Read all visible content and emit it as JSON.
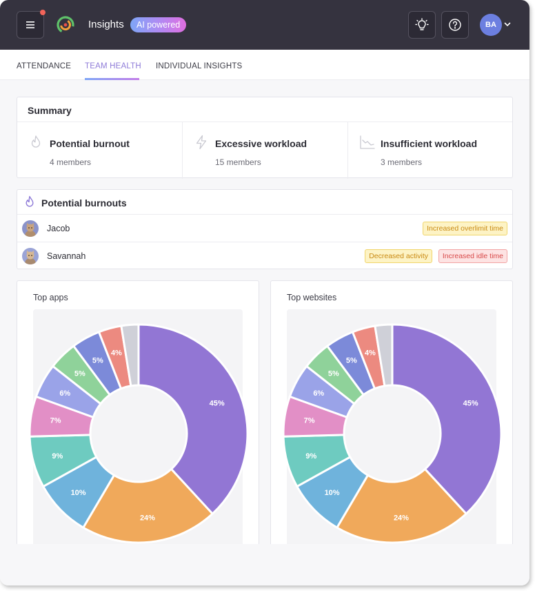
{
  "header": {
    "title": "Insights",
    "badge": "AI powered",
    "avatar_initials": "BA",
    "colors": {
      "bar": "#35333f",
      "badge_start": "#7ea6f7",
      "badge_end": "#e06ee0",
      "avatar": "#6c7fe0",
      "notification": "#f2645a"
    },
    "icons": [
      "menu-icon",
      "lightbulb-icon",
      "help-icon",
      "chevron-down-icon"
    ]
  },
  "tabs": [
    {
      "label": "ATTENDANCE",
      "active": false
    },
    {
      "label": "TEAM HEALTH",
      "active": true
    },
    {
      "label": "INDIVIDUAL INSIGHTS",
      "active": false
    }
  ],
  "summary": {
    "title": "Summary",
    "items": [
      {
        "name": "Potential burnout",
        "count": "4 members",
        "icon": "flame-icon"
      },
      {
        "name": "Excessive workload",
        "count": "15 members",
        "icon": "lightning-icon"
      },
      {
        "name": "Insufficient workload",
        "count": "3 members",
        "icon": "trend-down-icon"
      }
    ]
  },
  "burnouts": {
    "title": "Potential burnouts",
    "people": [
      {
        "name": "Jacob",
        "tags": [
          {
            "label": "Increased overlimit time",
            "kind": "warn"
          }
        ]
      },
      {
        "name": "Savannah",
        "tags": [
          {
            "label": "Decreased activity",
            "kind": "warn"
          },
          {
            "label": "Increased idle time",
            "kind": "err"
          }
        ]
      }
    ]
  },
  "chart_data": [
    {
      "type": "pie",
      "title": "Top apps",
      "values": [
        45,
        24,
        10,
        9,
        7,
        6,
        5,
        5,
        4,
        3
      ],
      "labels": [
        "45%",
        "24%",
        "10%",
        "9%",
        "7%",
        "6%",
        "5%",
        "5%",
        "4%",
        ""
      ],
      "colors": [
        "#9276d4",
        "#f0a95b",
        "#6fb3dc",
        "#6ecbc0",
        "#e28fc6",
        "#9aa3e8",
        "#8fd29a",
        "#7c8ad9",
        "#ec8a80",
        "#cfd0d8"
      ]
    },
    {
      "type": "pie",
      "title": "Top websites",
      "values": [
        45,
        24,
        10,
        9,
        7,
        6,
        5,
        5,
        4,
        3
      ],
      "labels": [
        "45%",
        "24%",
        "10%",
        "9%",
        "7%",
        "6%",
        "5%",
        "5%",
        "4%",
        ""
      ],
      "colors": [
        "#9276d4",
        "#f0a95b",
        "#6fb3dc",
        "#6ecbc0",
        "#e28fc6",
        "#9aa3e8",
        "#8fd29a",
        "#7c8ad9",
        "#ec8a80",
        "#cfd0d8"
      ]
    }
  ]
}
